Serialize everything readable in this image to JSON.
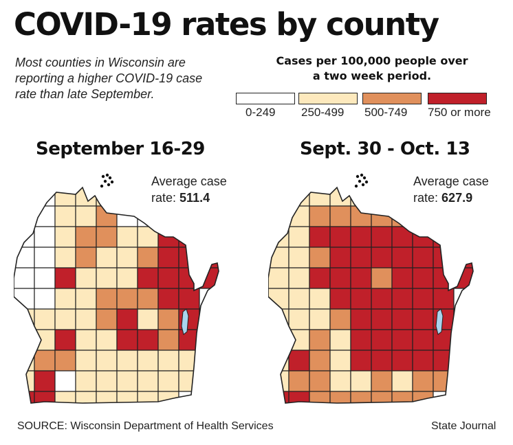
{
  "title": "COVID-19 rates by county",
  "intro": "Most counties in Wisconsin are reporting a higher COVID-19 case rate than late September.",
  "legend": {
    "title_line1": "Cases per 100,000 people over",
    "title_line2": "a two week period.",
    "items": [
      {
        "label": "0-249",
        "color": "#ffffff"
      },
      {
        "label": "250-499",
        "color": "#fde9bd"
      },
      {
        "label": "500-749",
        "color": "#e0905c"
      },
      {
        "label": "750 or more",
        "color": "#c0202a"
      }
    ]
  },
  "maps": [
    {
      "title": "September 16-29",
      "avg_prefix": "Average case",
      "avg_label": "rate:",
      "avg_value": "511.4"
    },
    {
      "title": "Sept. 30 - Oct. 13",
      "avg_prefix": "Average case",
      "avg_label": "rate:",
      "avg_value": "627.9"
    }
  ],
  "colors": {
    "lake": "#a9d4ee",
    "border": "#222222"
  },
  "footer": {
    "source": "SOURCE: Wisconsin Department of Health Services",
    "credit": "State Journal"
  }
}
